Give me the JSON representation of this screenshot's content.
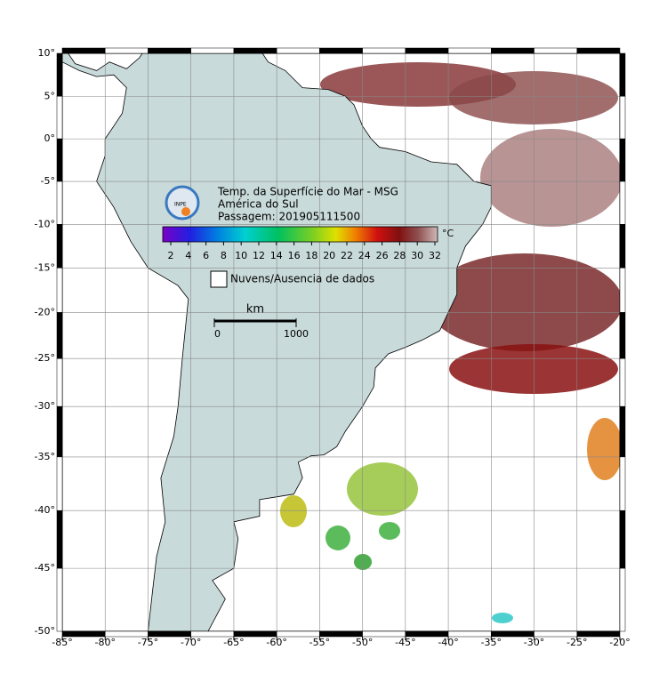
{
  "map": {
    "title_lines": [
      "Temp. da Superfície do Mar - MSG",
      "América do Sul",
      "Passagem: 201905111500"
    ],
    "logo": "INPE",
    "colorbar": {
      "ticks": [
        2,
        4,
        6,
        8,
        10,
        12,
        14,
        16,
        18,
        20,
        22,
        24,
        26,
        28,
        30,
        32
      ],
      "unit": "°C"
    },
    "legend": "Nuvens/Ausencia de dados",
    "scale": {
      "unit": "km",
      "labels": [
        0,
        1000
      ]
    },
    "xlim": [
      -85,
      -20
    ],
    "ylim": [
      -50,
      10
    ],
    "xticks": [
      {
        "value": -85,
        "label": "-85°"
      },
      {
        "value": -80,
        "label": "-80°"
      },
      {
        "value": -75,
        "label": "-75°"
      },
      {
        "value": -70,
        "label": "-70°"
      },
      {
        "value": -65,
        "label": "-65°"
      },
      {
        "value": -60,
        "label": "-60°"
      },
      {
        "value": -55,
        "label": "-55°"
      },
      {
        "value": -50,
        "label": "-50°"
      },
      {
        "value": -45,
        "label": "-45°"
      },
      {
        "value": -40,
        "label": "-40°"
      },
      {
        "value": -35,
        "label": "-35°"
      },
      {
        "value": -30,
        "label": "-30°"
      },
      {
        "value": -25,
        "label": "-25°"
      },
      {
        "value": -20,
        "label": "-20°"
      }
    ],
    "yticks": [
      {
        "value": 10,
        "label": "10°"
      },
      {
        "value": 5,
        "label": "5°"
      },
      {
        "value": 0,
        "label": "0°"
      },
      {
        "value": -5,
        "label": "-5°"
      },
      {
        "value": -10,
        "label": "-10°"
      },
      {
        "value": -15,
        "label": "-15°"
      },
      {
        "value": -20,
        "label": "-20°"
      },
      {
        "value": -25,
        "label": "-25°"
      },
      {
        "value": -30,
        "label": "-30°"
      },
      {
        "value": -35,
        "label": "-35°"
      },
      {
        "value": -40,
        "label": "-40°"
      },
      {
        "value": -45,
        "label": "-45°"
      },
      {
        "value": -50,
        "label": "-50°"
      }
    ]
  }
}
